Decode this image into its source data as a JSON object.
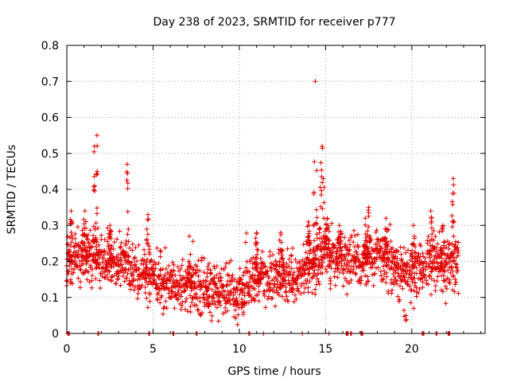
{
  "chart_data": {
    "type": "scatter",
    "title": "Day 238 of 2023, SRMTID for receiver p777",
    "xlabel": "GPS time / hours",
    "ylabel": "SRMTID / TECUs",
    "xlim": [
      0,
      24.25
    ],
    "ylim": [
      0,
      0.8
    ],
    "xticks": [
      0,
      5,
      10,
      15,
      20
    ],
    "xtick_labels": [
      "0",
      "5",
      "10",
      "15",
      "20"
    ],
    "yticks": [
      0,
      0.1,
      0.2,
      0.3,
      0.4,
      0.5,
      0.6,
      0.7,
      0.8
    ],
    "ytick_labels": [
      "0",
      "0.1",
      "0.2",
      "0.3",
      "0.4",
      "0.5",
      "0.6",
      "0.7",
      "0.8"
    ],
    "grid": true,
    "marker": "+",
    "color": "#e00000",
    "series": [
      {
        "name": "SRMTID",
        "sample_step_hours": 0.05,
        "baseline_profile": [
          [
            0,
            0.19
          ],
          [
            1,
            0.2
          ],
          [
            2,
            0.19
          ],
          [
            3,
            0.18
          ],
          [
            4,
            0.16
          ],
          [
            5,
            0.15
          ],
          [
            6,
            0.13
          ],
          [
            7,
            0.13
          ],
          [
            8,
            0.11
          ],
          [
            9,
            0.11
          ],
          [
            10,
            0.1
          ],
          [
            10.5,
            0.13
          ],
          [
            11,
            0.14
          ],
          [
            12,
            0.14
          ],
          [
            13,
            0.14
          ],
          [
            14,
            0.16
          ],
          [
            15,
            0.22
          ],
          [
            16,
            0.2
          ],
          [
            17,
            0.18
          ],
          [
            18,
            0.21
          ],
          [
            19,
            0.18
          ],
          [
            20,
            0.15
          ],
          [
            21,
            0.18
          ],
          [
            22,
            0.18
          ],
          [
            22.7,
            0.2
          ]
        ],
        "spread": 0.055,
        "spikes": [
          {
            "center": 0.25,
            "peak": 0.34,
            "width": 0.15
          },
          {
            "center": 1.05,
            "peak": 0.34,
            "width": 0.2
          },
          {
            "center": 1.6,
            "peak": 0.52,
            "width": 0.1
          },
          {
            "center": 1.75,
            "peak": 0.55,
            "width": 0.08
          },
          {
            "center": 2.5,
            "peak": 0.3,
            "width": 0.2
          },
          {
            "center": 3.5,
            "peak": 0.47,
            "width": 0.1
          },
          {
            "center": 4.7,
            "peak": 0.33,
            "width": 0.15
          },
          {
            "center": 7.1,
            "peak": 0.27,
            "width": 0.15
          },
          {
            "center": 11,
            "peak": 0.28,
            "width": 0.15
          },
          {
            "center": 12.4,
            "peak": 0.28,
            "width": 0.2
          },
          {
            "center": 14,
            "peak": 0.31,
            "width": 0.2
          },
          {
            "center": 14.4,
            "peak": 0.7,
            "width": 0.12
          },
          {
            "center": 14.8,
            "peak": 0.52,
            "width": 0.2
          },
          {
            "center": 15.1,
            "peak": 0.32,
            "width": 0.2
          },
          {
            "center": 15.8,
            "peak": 0.3,
            "width": 0.15
          },
          {
            "center": 17.3,
            "peak": 0.32,
            "width": 0.15
          },
          {
            "center": 17.5,
            "peak": 0.35,
            "width": 0.12
          },
          {
            "center": 18.5,
            "peak": 0.32,
            "width": 0.15
          },
          {
            "center": 20.1,
            "peak": 0.3,
            "width": 0.15
          },
          {
            "center": 21.1,
            "peak": 0.34,
            "width": 0.12
          },
          {
            "center": 21.8,
            "peak": 0.3,
            "width": 0.15
          },
          {
            "center": 22.4,
            "peak": 0.43,
            "width": 0.12
          }
        ],
        "dips": [
          {
            "center": 19.6,
            "value": 0.03
          },
          {
            "center": 8.2,
            "value": 0.07
          },
          {
            "center": 10.2,
            "value": 0.05
          }
        ],
        "zero_points": [
          0.05,
          0.1,
          0.15,
          1.8,
          1.85,
          4.75,
          4.8,
          6.15,
          6.2,
          7.5,
          7.55,
          10.55,
          10.6,
          11.4,
          13.65,
          15.2,
          16.2,
          16.25,
          16.3,
          16.45,
          16.5,
          17.05,
          17.1,
          17.15,
          20.6,
          20.65,
          20.7,
          21.4,
          21.45,
          22.1,
          22.15,
          22.2
        ]
      }
    ]
  }
}
